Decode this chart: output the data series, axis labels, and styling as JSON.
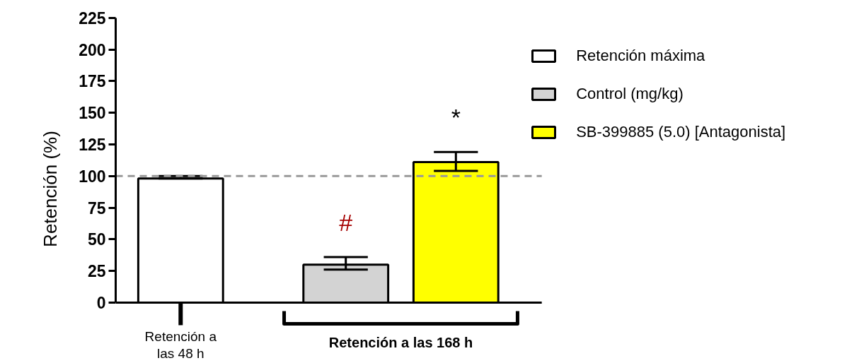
{
  "chart_data": {
    "type": "bar",
    "ylabel": "Retención (%)",
    "categories": [
      "Retención a las 48 h",
      "Retención a las 168 h"
    ],
    "series": [
      {
        "name": "Retención máxima",
        "color": "#ffffff",
        "values": [
          98,
          null
        ],
        "errors": [
          [
            98,
            100
          ],
          null
        ]
      },
      {
        "name": "Control (mg/kg)",
        "color": "#d3d3d3",
        "values": [
          null,
          30
        ],
        "errors": [
          null,
          [
            26,
            36
          ]
        ],
        "value_labels": [
          null,
          "#"
        ]
      },
      {
        "name": "SB-399885 (5.0) [Antagonista]",
        "color": "#ffff00",
        "values": [
          null,
          111
        ],
        "errors": [
          null,
          [
            104,
            119
          ]
        ],
        "value_labels": [
          null,
          "*"
        ]
      }
    ],
    "ylim": [
      0,
      225
    ],
    "yticks": [
      0,
      25,
      50,
      75,
      100,
      125,
      150,
      175,
      200,
      225
    ],
    "grid": false,
    "legend": "top right",
    "ref_lines": [
      {
        "axis": "y",
        "value": 100,
        "color": "#999999",
        "line_style": "dashed"
      }
    ]
  }
}
